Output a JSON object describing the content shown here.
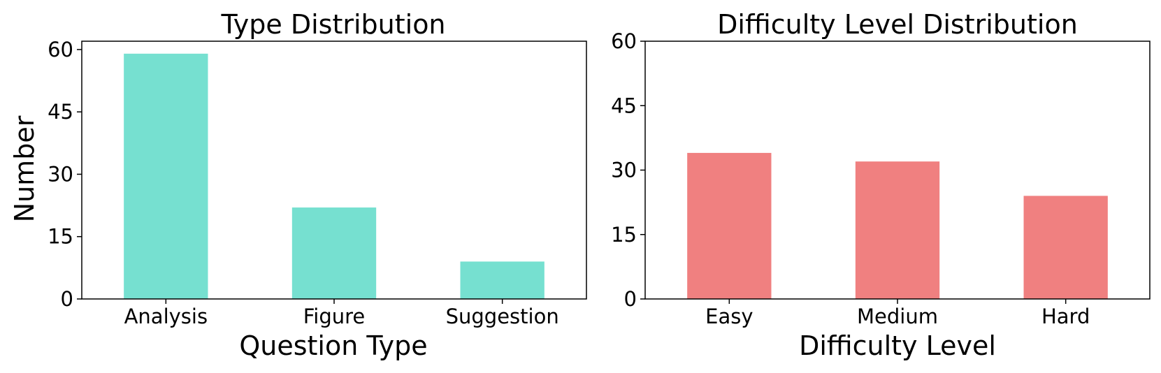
{
  "chart_data": [
    {
      "type": "bar",
      "title": "Type Distribution",
      "xlabel": "Question Type",
      "ylabel": "Number",
      "categories": [
        "Analysis",
        "Figure",
        "Suggestion"
      ],
      "values": [
        59,
        22,
        9
      ],
      "ylim": [
        0,
        62
      ],
      "yticks": [
        "0",
        "15",
        "30",
        "45",
        "60"
      ],
      "color": "#76E0D0",
      "grid": false
    },
    {
      "type": "bar",
      "title": "Difficulty Level Distribution",
      "xlabel": "Difficulty Level",
      "ylabel": "",
      "categories": [
        "Easy",
        "Medium",
        "Hard"
      ],
      "values": [
        34,
        32,
        24
      ],
      "ylim": [
        0,
        60
      ],
      "yticks": [
        "0",
        "15",
        "30",
        "45",
        "60"
      ],
      "color": "#F08080",
      "grid": false
    }
  ]
}
